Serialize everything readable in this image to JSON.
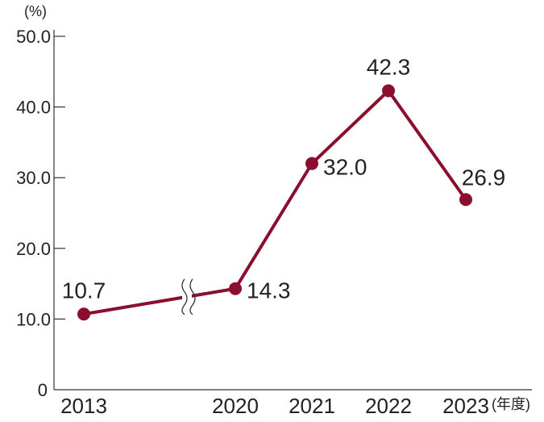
{
  "chart_data": {
    "type": "line",
    "categories": [
      "2013",
      "2020",
      "2021",
      "2022",
      "2023"
    ],
    "series": [
      {
        "values": [
          10.7,
          14.3,
          32.0,
          42.3,
          26.9
        ],
        "labels": [
          "10.7",
          "14.3",
          "32.0",
          "42.3",
          "26.9"
        ]
      }
    ],
    "y_unit": "(%)",
    "x_unit": "(年度)",
    "ylim": [
      0,
      50
    ],
    "y_ticks": [
      0,
      10,
      20,
      30,
      40,
      50
    ],
    "y_tick_labels": [
      "0",
      "10.0",
      "20.0",
      "30.0",
      "40.0",
      "50.0"
    ],
    "axis_break": "between 2013 and 2020",
    "grid": false,
    "colors": {
      "line": "#8a0f2e",
      "axis": "#333333"
    }
  }
}
